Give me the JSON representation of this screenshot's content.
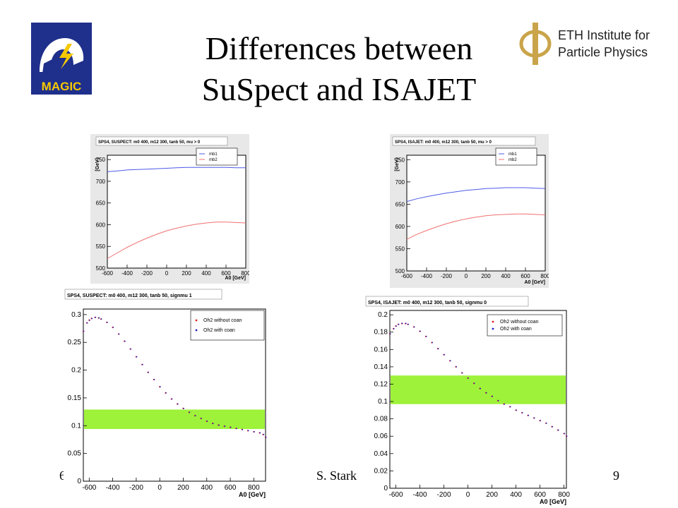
{
  "slide": {
    "title_line1": "Differences between",
    "title_line2": "SuSpect and ISAJET",
    "footer_left": "6",
    "footer_center": "S. Stark",
    "footer_right": "9"
  },
  "logos": {
    "magic_text": "MAGIC",
    "eth_line1": "ETH Institute for",
    "eth_line2": "Particle Physics"
  },
  "chart_data": [
    {
      "type": "line",
      "title": "SPS4, SUSPECT: m0 400, m12 300, tanb 50, mu > 0",
      "xlabel": "A0 [GeV]",
      "ylabel": "[GeV]",
      "xlim": [
        -600,
        800
      ],
      "ylim": [
        500,
        760
      ],
      "xticks": [
        "-600",
        "-400",
        "-200",
        "0",
        "200",
        "400",
        "600",
        "800"
      ],
      "yticks": [
        "500",
        "550",
        "600",
        "650",
        "700",
        "750"
      ],
      "legend": "top-right",
      "x": [
        -600,
        -500,
        -400,
        -300,
        -200,
        -100,
        0,
        100,
        200,
        300,
        400,
        500,
        600,
        700,
        800
      ],
      "series": [
        {
          "name": "mb1",
          "color": "#4d5ae8",
          "values": [
            722,
            724,
            726,
            727,
            728,
            729,
            730,
            731,
            732,
            732,
            732,
            732,
            732,
            731,
            731
          ]
        },
        {
          "name": "mb2",
          "color": "#f07070",
          "values": [
            522,
            535,
            548,
            559,
            569,
            578,
            586,
            592,
            597,
            601,
            604,
            606,
            606,
            605,
            604
          ]
        }
      ]
    },
    {
      "type": "line",
      "title": "SPS4, ISAJET: m0 400, m12 300, tanb 50, mu > 0",
      "xlabel": "A0 [GeV]",
      "ylabel": "[GeV]",
      "xlim": [
        -600,
        800
      ],
      "ylim": [
        500,
        760
      ],
      "xticks": [
        "-600",
        "-400",
        "-200",
        "0",
        "200",
        "400",
        "600",
        "800"
      ],
      "yticks": [
        "500",
        "550",
        "600",
        "650",
        "700",
        "750"
      ],
      "legend": "top-right",
      "x": [
        -600,
        -500,
        -400,
        -300,
        -200,
        -100,
        0,
        100,
        200,
        300,
        400,
        500,
        600,
        700,
        800
      ],
      "series": [
        {
          "name": "mb1",
          "color": "#4d5ae8",
          "values": [
            656,
            662,
            667,
            671,
            675,
            678,
            681,
            683,
            685,
            686,
            687,
            687,
            687,
            686,
            685
          ]
        },
        {
          "name": "mb2",
          "color": "#f07070",
          "values": [
            571,
            582,
            591,
            599,
            606,
            612,
            617,
            621,
            624,
            626,
            627,
            628,
            628,
            627,
            626
          ]
        }
      ]
    },
    {
      "type": "scatter",
      "title": "SPS4, SUSPECT: m0 400, m12 300, tanb 50, signmu 1",
      "xlabel": "A0 [GeV]",
      "ylabel": "",
      "xlim": [
        -650,
        900
      ],
      "ylim": [
        0,
        0.31
      ],
      "xticks": [
        "-600",
        "-400",
        "-200",
        "0",
        "200",
        "400",
        "600",
        "800"
      ],
      "yticks": [
        "0",
        "0.05",
        "0.1",
        "0.15",
        "0.2",
        "0.25",
        "0.3"
      ],
      "legend": "top-right",
      "band": {
        "y_low": 0.094,
        "y_high": 0.129,
        "color": "#9ef23a"
      },
      "x": [
        -650,
        -620,
        -600,
        -580,
        -550,
        -520,
        -500,
        -450,
        -400,
        -350,
        -300,
        -250,
        -200,
        -150,
        -100,
        -50,
        0,
        50,
        100,
        150,
        200,
        250,
        300,
        350,
        400,
        450,
        500,
        550,
        600,
        650,
        700,
        750,
        800,
        850,
        880,
        900
      ],
      "series": [
        {
          "name": "Oh2 without coan",
          "color": "#e02020",
          "values": [
            0.27,
            0.285,
            0.29,
            0.293,
            0.295,
            0.294,
            0.292,
            0.286,
            0.277,
            0.265,
            0.252,
            0.238,
            0.224,
            0.21,
            0.196,
            0.183,
            0.17,
            0.159,
            0.148,
            0.139,
            0.131,
            0.124,
            0.118,
            0.113,
            0.108,
            0.104,
            0.101,
            0.099,
            0.097,
            0.095,
            0.093,
            0.091,
            0.089,
            0.087,
            0.084,
            0.079
          ]
        },
        {
          "name": "Oh2 with coan",
          "color": "#2020c0",
          "values": [
            0.27,
            0.285,
            0.29,
            0.293,
            0.295,
            0.294,
            0.292,
            0.286,
            0.277,
            0.265,
            0.252,
            0.238,
            0.224,
            0.21,
            0.196,
            0.183,
            0.17,
            0.159,
            0.148,
            0.139,
            0.131,
            0.124,
            0.118,
            0.113,
            0.108,
            0.104,
            0.101,
            0.099,
            0.097,
            0.095,
            0.093,
            0.091,
            0.089,
            0.087,
            0.084,
            0.079
          ]
        }
      ]
    },
    {
      "type": "scatter",
      "title": "SPS4, ISAJET: m0 400, m12 300, tanb 50, signmu 0",
      "xlabel": "A0 [GeV]",
      "ylabel": "",
      "xlim": [
        -650,
        820
      ],
      "ylim": [
        0,
        0.205
      ],
      "xticks": [
        "-600",
        "-400",
        "-200",
        "0",
        "200",
        "400",
        "600",
        "800"
      ],
      "yticks": [
        "0",
        "0.02",
        "0.04",
        "0.06",
        "0.08",
        "0.1",
        "0.12",
        "0.14",
        "0.16",
        "0.18",
        "0.2"
      ],
      "legend": "top-right",
      "band": {
        "y_low": 0.097,
        "y_high": 0.13,
        "color": "#9ef23a"
      },
      "x": [
        -650,
        -620,
        -600,
        -580,
        -550,
        -520,
        -500,
        -450,
        -400,
        -350,
        -300,
        -250,
        -200,
        -150,
        -100,
        -50,
        0,
        50,
        100,
        150,
        200,
        250,
        300,
        350,
        400,
        450,
        500,
        550,
        600,
        650,
        700,
        750,
        800,
        820
      ],
      "series": [
        {
          "name": "Oh2 without coan",
          "color": "#e02020",
          "values": [
            0.178,
            0.184,
            0.187,
            0.189,
            0.19,
            0.19,
            0.189,
            0.186,
            0.181,
            0.175,
            0.168,
            0.161,
            0.154,
            0.147,
            0.14,
            0.133,
            0.127,
            0.121,
            0.115,
            0.11,
            0.106,
            0.101,
            0.097,
            0.094,
            0.09,
            0.087,
            0.084,
            0.081,
            0.078,
            0.075,
            0.071,
            0.067,
            0.063,
            0.06
          ]
        },
        {
          "name": "Oh2 with coan",
          "color": "#2020c0",
          "values": [
            0.178,
            0.184,
            0.187,
            0.189,
            0.19,
            0.19,
            0.189,
            0.186,
            0.181,
            0.175,
            0.168,
            0.161,
            0.154,
            0.147,
            0.14,
            0.133,
            0.127,
            0.121,
            0.115,
            0.11,
            0.106,
            0.101,
            0.097,
            0.094,
            0.09,
            0.087,
            0.084,
            0.081,
            0.078,
            0.075,
            0.071,
            0.067,
            0.063,
            0.06
          ]
        }
      ]
    }
  ]
}
